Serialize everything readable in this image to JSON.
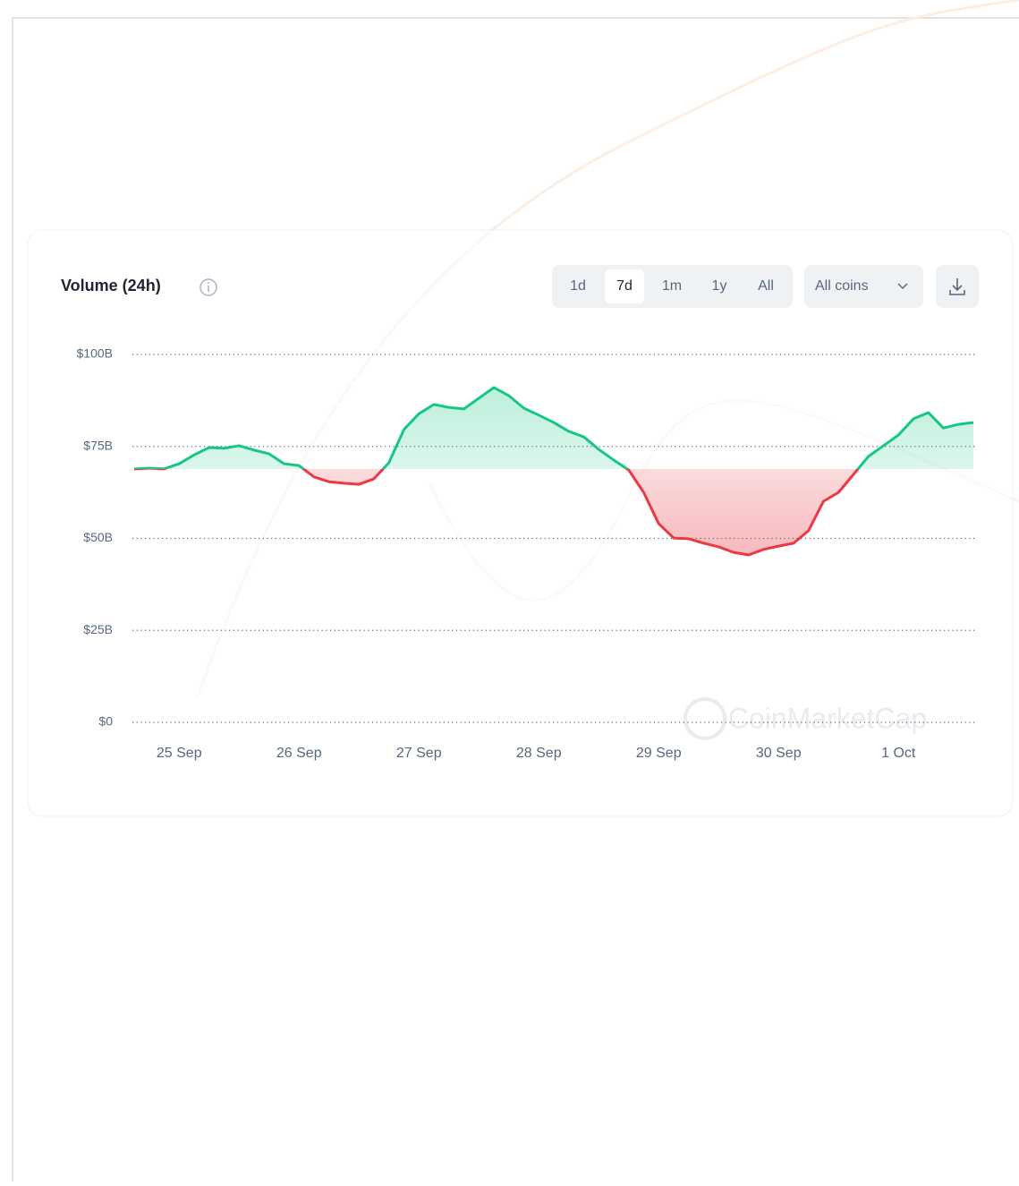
{
  "header": {
    "title": "Volume (24h)"
  },
  "controls": {
    "ranges": [
      "1d",
      "7d",
      "1m",
      "1y",
      "All"
    ],
    "selected_range": 1,
    "filter": "All coins"
  },
  "watermark": "CoinMarketCap",
  "chart_data": {
    "type": "line",
    "categories": [
      null,
      null,
      null,
      "25 Sep",
      null,
      null,
      null,
      null,
      null,
      null,
      null,
      "26 Sep",
      null,
      null,
      null,
      null,
      null,
      null,
      null,
      "27 Sep",
      null,
      null,
      null,
      null,
      null,
      null,
      null,
      "28 Sep",
      null,
      null,
      null,
      null,
      null,
      null,
      null,
      "29 Sep",
      null,
      null,
      null,
      null,
      null,
      null,
      null,
      "30 Sep",
      null,
      null,
      null,
      null,
      null,
      null,
      null,
      "1 Oct",
      null,
      null,
      null,
      null,
      null
    ],
    "values": [
      68.9,
      69.1,
      68.9,
      70.3,
      72.7,
      74.7,
      74.5,
      75.2,
      74,
      73,
      70.3,
      69.8,
      66.7,
      65.4,
      65,
      64.7,
      66.2,
      70.6,
      79.6,
      83.9,
      86.4,
      85.6,
      85.2,
      88.1,
      91,
      88.8,
      85.4,
      83.5,
      81.5,
      79.1,
      77.6,
      74.2,
      71.3,
      68.6,
      62.5,
      54,
      50.1,
      49.9,
      48.7,
      47.7,
      46.2,
      45.5,
      47,
      47.9,
      48.7,
      52.1,
      60.1,
      62.5,
      67.4,
      72.3,
      75.2,
      78.1,
      82.5,
      84.2,
      80,
      81,
      81.5
    ],
    "ylim": [
      0,
      100
    ],
    "yticks": [
      {
        "value": 0,
        "label": "$0"
      },
      {
        "value": 25,
        "label": "$25B"
      },
      {
        "value": 50,
        "label": "$50B"
      },
      {
        "value": 75,
        "label": "$75B"
      },
      {
        "value": 100,
        "label": "$100B"
      }
    ],
    "grid": true,
    "up_color": "#16c784",
    "down_color": "#ea3943"
  }
}
